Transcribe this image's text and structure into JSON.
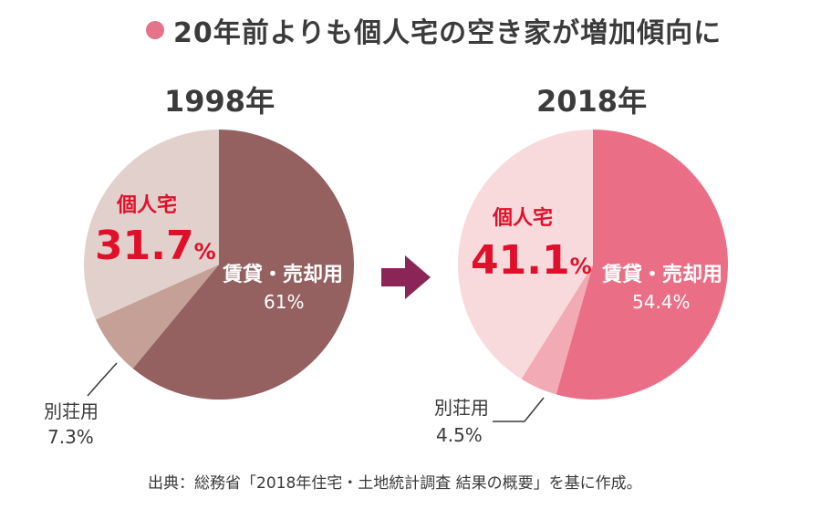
{
  "title": "20年前よりも個人宅の空き家が増加傾向に",
  "source": "出典：総務省「2018年住宅・土地統計調査 結果の概要」を基に作成。",
  "colors": {
    "title_dot": "#e5738a",
    "arrow": "#8b2457",
    "kojin_label": "#e0102a"
  },
  "chart_data": [
    {
      "type": "pie",
      "title": "1998年",
      "slices": [
        {
          "label": "賃貸・売却用",
          "value": 61,
          "value_text": "61%",
          "color": "#946060"
        },
        {
          "label": "別荘用",
          "value": 7.3,
          "value_text": "7.3%",
          "color": "#c4a096"
        },
        {
          "label": "個人宅",
          "value": 31.7,
          "value_text": "31.7",
          "unit": "%",
          "color": "#e2d0cc"
        }
      ]
    },
    {
      "type": "pie",
      "title": "2018年",
      "slices": [
        {
          "label": "賃貸・売却用",
          "value": 54.4,
          "value_text": "54.4%",
          "color": "#ea6f86"
        },
        {
          "label": "別荘用",
          "value": 4.5,
          "value_text": "4.5%",
          "color": "#f2aab5"
        },
        {
          "label": "個人宅",
          "value": 41.1,
          "value_text": "41.1",
          "unit": "%",
          "color": "#f8dadd"
        }
      ]
    }
  ]
}
